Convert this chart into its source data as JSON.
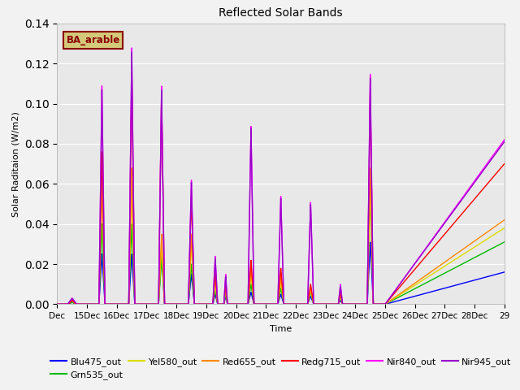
{
  "title": "Reflected Solar Bands",
  "xlabel": "Time",
  "ylabel": "Solar Raditaion (W/m2)",
  "ylim": [
    0,
    0.14
  ],
  "plot_bg": "#e8e8e8",
  "fig_bg": "#f2f2f2",
  "annotation_text": "BA_arable",
  "annotation_color": "#8B0000",
  "annotation_bg": "#d4c97a",
  "series": {
    "Blu475_out": {
      "color": "#0000ff",
      "lw": 1.0
    },
    "Grn535_out": {
      "color": "#00bb00",
      "lw": 1.0
    },
    "Yel580_out": {
      "color": "#dddd00",
      "lw": 1.0
    },
    "Red655_out": {
      "color": "#ff8800",
      "lw": 1.0
    },
    "Redg715_out": {
      "color": "#ff0000",
      "lw": 1.0
    },
    "Nir840_out": {
      "color": "#ff00ff",
      "lw": 1.0
    },
    "Nir945_out": {
      "color": "#9900cc",
      "lw": 1.0
    }
  },
  "xtick_labels": [
    "Dec",
    "15Dec",
    "16Dec",
    "17Dec",
    "18Dec",
    "19Dec",
    "20Dec",
    "21Dec",
    "22Dec",
    "23Dec",
    "24Dec",
    "25Dec",
    "26Dec",
    "27Dec",
    "28Dec",
    "29"
  ],
  "grid_color": "#ffffff",
  "grid_lw": 0.8
}
